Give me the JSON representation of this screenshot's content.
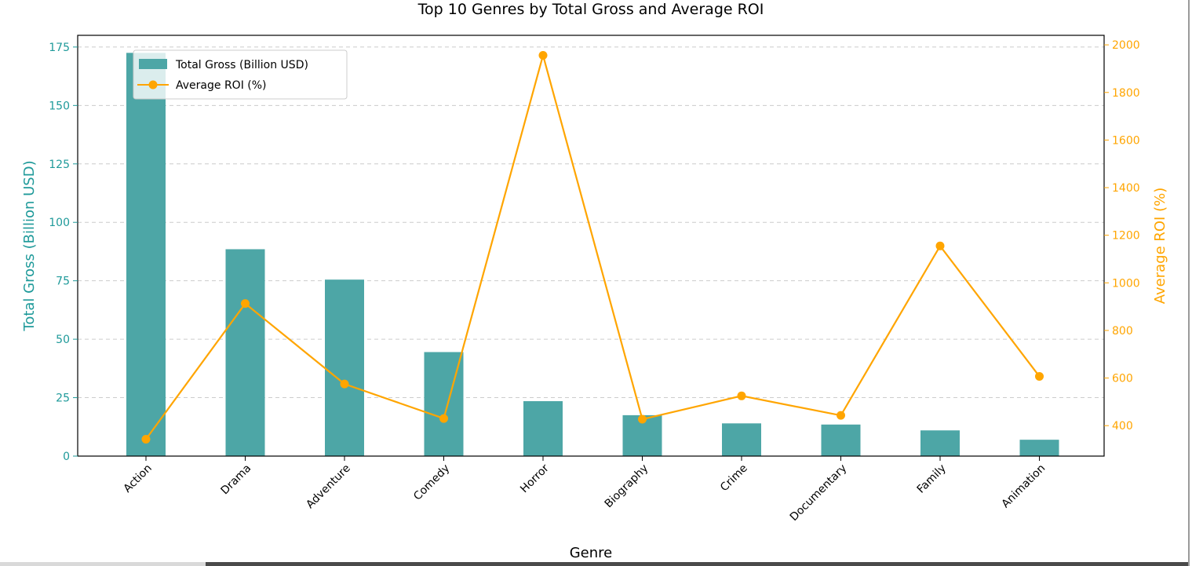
{
  "colors": {
    "bar": "#4da6a6",
    "bar_axis": "#1f9a9a",
    "line": "#ffa500",
    "grid": "#cccccc",
    "axis": "#000000"
  },
  "chart_data": {
    "type": "bar",
    "title": "Top 10 Genres by Total Gross and Average ROI",
    "xlabel": "Genre",
    "ylabel": "Total Gross (Billion USD)",
    "y2label": "Average ROI (%)",
    "categories": [
      "Action",
      "Drama",
      "Adventure",
      "Comedy",
      "Horror",
      "Biography",
      "Crime",
      "Documentary",
      "Family",
      "Animation"
    ],
    "series": [
      {
        "name": "Total Gross (Billion USD)",
        "type": "bar",
        "axis": "left",
        "values": [
          172.5,
          88.5,
          75.5,
          44.5,
          23.5,
          17.5,
          14.0,
          13.5,
          11.0,
          7.0
        ]
      },
      {
        "name": "Average ROI (%)",
        "type": "line",
        "axis": "right",
        "values": [
          343,
          913,
          575,
          430,
          1956,
          427,
          525,
          443,
          1155,
          607
        ]
      }
    ],
    "ylim": [
      0,
      180
    ],
    "y2lim": [
      272,
      2040
    ],
    "yticks": [
      0,
      25,
      50,
      75,
      100,
      125,
      150,
      175
    ],
    "y2ticks": [
      400,
      600,
      800,
      1000,
      1200,
      1400,
      1600,
      1800,
      2000
    ],
    "grid": "horizontal dashed",
    "legend_position": "upper-left"
  }
}
